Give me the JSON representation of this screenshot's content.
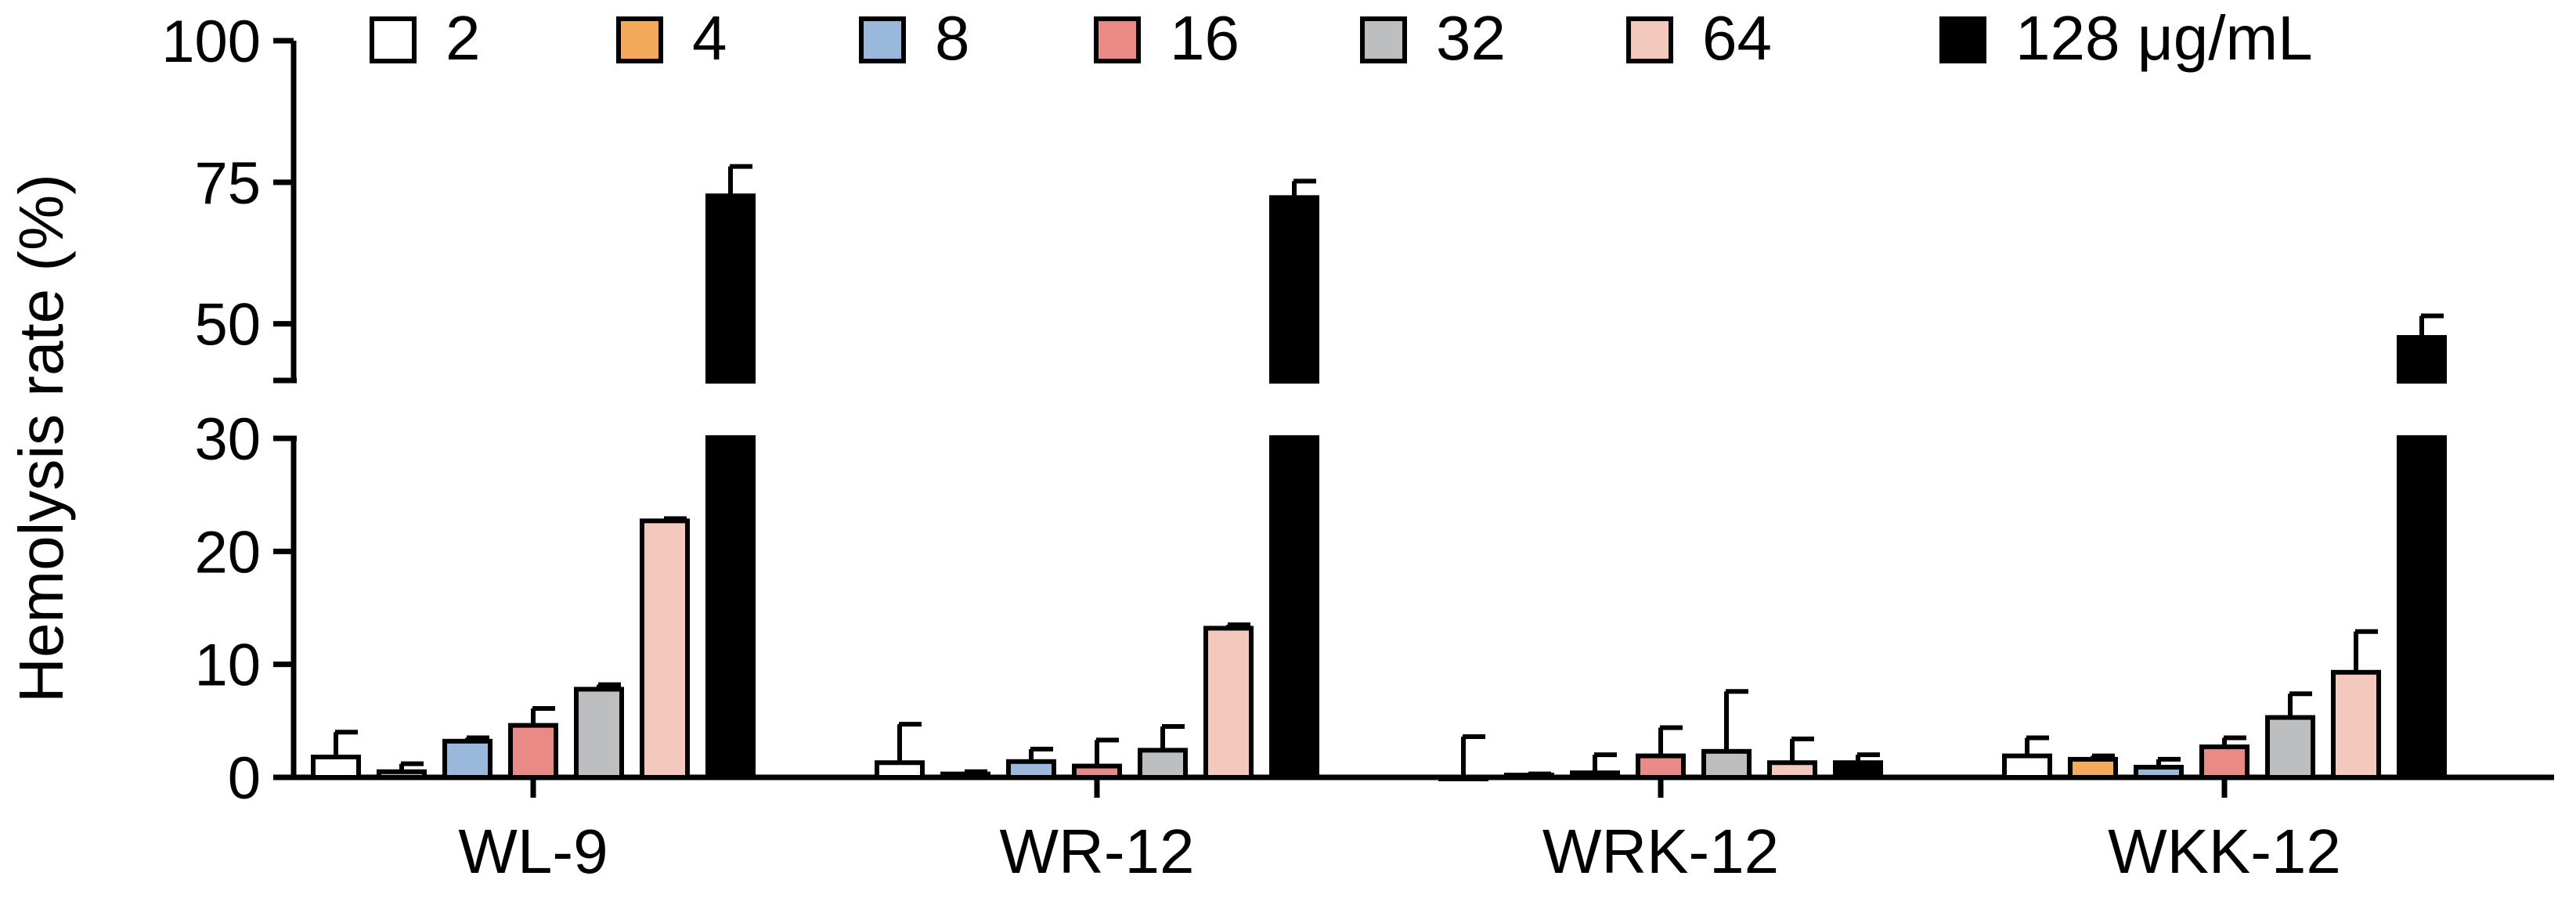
{
  "chart_data": {
    "type": "bar",
    "title": "",
    "xlabel": "",
    "ylabel": "Hemolysis rate (%)",
    "y_axis_break": {
      "lower_range": [
        0,
        30
      ],
      "upper_range": [
        40,
        100
      ]
    },
    "ylim": [
      0,
      100
    ],
    "lower_ticks": [
      "0",
      "10",
      "20",
      "30"
    ],
    "upper_ticks": [
      "50",
      "75",
      "100"
    ],
    "legend_position": "top",
    "categories": [
      "WL-9",
      "WR-12",
      "WRK-12",
      "WKK-12"
    ],
    "series": [
      {
        "name": "2",
        "color": "#ffffff",
        "values": [
          1.8,
          1.3,
          0.0,
          1.9
        ],
        "errors": [
          2.2,
          3.4,
          3.6,
          1.6
        ]
      },
      {
        "name": "4",
        "color": "#f5a95a",
        "values": [
          0.5,
          0.3,
          0.2,
          1.6
        ],
        "errors": [
          0.7,
          0.2,
          0.1,
          0.3
        ]
      },
      {
        "name": "8",
        "color": "#9ab7dc",
        "values": [
          3.2,
          1.4,
          0.4,
          0.9
        ],
        "errors": [
          0.3,
          1.1,
          1.6,
          0.7
        ]
      },
      {
        "name": "16",
        "color": "#e98a86",
        "values": [
          4.6,
          1.0,
          1.9,
          2.7
        ],
        "errors": [
          1.5,
          2.3,
          2.5,
          0.8
        ]
      },
      {
        "name": "32",
        "color": "#bcbec0",
        "values": [
          7.8,
          2.4,
          2.3,
          5.3
        ],
        "errors": [
          0.4,
          2.1,
          5.3,
          2.1
        ]
      },
      {
        "name": "64",
        "color": "#f2c9bc",
        "values": [
          22.7,
          13.2,
          1.3,
          9.3
        ],
        "errors": [
          0.2,
          0.3,
          2.1,
          3.6
        ]
      },
      {
        "name": "128 μg/mL",
        "color": "#000000",
        "values": [
          72.6,
          72.3,
          1.3,
          47.6
        ],
        "errors": [
          5.2,
          2.9,
          0.7,
          3.8
        ]
      }
    ]
  }
}
